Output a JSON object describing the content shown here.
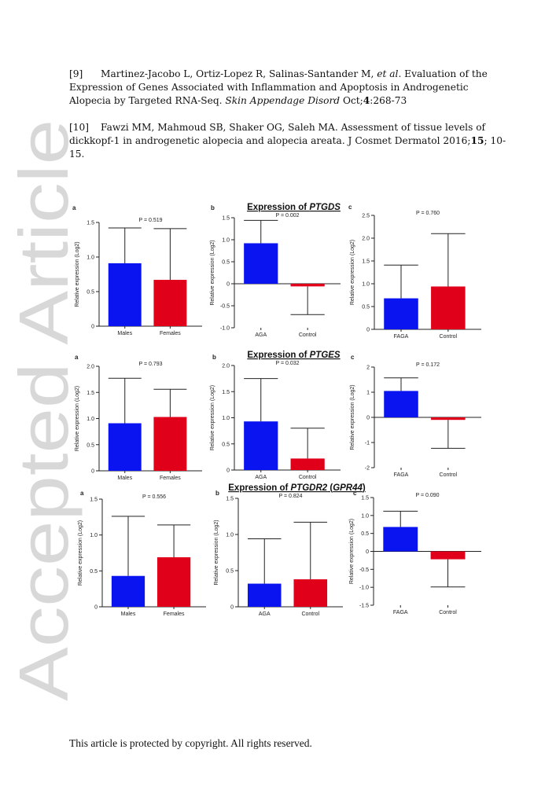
{
  "references": [
    {
      "num": "[9]",
      "authors": "Martinez-Jacobo L, Ortiz-Lopez R, Salinas-Santander M,",
      "etal": "et al",
      "title_part": ". Evaluation of the Expression of Genes Associated with Inflammation and Apoptosis in Androgenetic Alopecia by Targeted RNA-Seq.",
      "journal": "Skin Appendage Disord",
      "tail_pre": "Oct;",
      "volume": "4",
      "tail_post": ":268-73"
    },
    {
      "num": "[10]",
      "authors": "Fawzi MM, Mahmoud SB, Shaker OG, Saleh MA. Assessment of tissue levels of dickkopf-1 in androgenetic alopecia and alopecia areata. J Cosmet Dermatol 2016;",
      "volume": "15",
      "tail_post": "; 10-15."
    }
  ],
  "watermark": "Accepted Article",
  "footer": "This article is protected by copyright. All rights reserved.",
  "colors": {
    "blue": "#0a14f0",
    "red": "#e0001a",
    "axis": "#222222"
  },
  "chart_data": [
    {
      "panel": "a",
      "gene_title": "",
      "type": "bar",
      "ylabel": "Relative expression (Log2)",
      "pvalue": "P = 0.519",
      "categories": [
        "Males",
        "Females"
      ],
      "values": [
        0.91,
        0.67
      ],
      "error_upper": [
        1.42,
        1.41
      ],
      "ylim": [
        0,
        1.5
      ],
      "yticks": [
        0,
        0.5,
        1.0,
        1.5
      ],
      "ytick_labels": [
        "0",
        "0.5",
        "1.0",
        "1.5"
      ]
    },
    {
      "panel": "b",
      "gene_title": "Expression of PTGDS",
      "gene_pre": "Expression of ",
      "gene_name": "PTGDS",
      "gene_post": "",
      "gene_paren": "",
      "gene_close": "",
      "type": "bar",
      "ylabel": "Relative expression (Log2)",
      "pvalue": "P = 0.002",
      "categories": [
        "AGA",
        "Control"
      ],
      "values": [
        0.92,
        -0.06
      ],
      "error_upper": [
        1.44,
        -0.7
      ],
      "ylim": [
        -1.0,
        1.5
      ],
      "yticks": [
        -1.0,
        -0.5,
        0,
        0.5,
        1.0,
        1.5
      ],
      "ytick_labels": [
        "-1.0",
        "-0.5",
        "0",
        "0.5",
        "1.0",
        "1.5"
      ]
    },
    {
      "panel": "c",
      "gene_title": "",
      "type": "bar",
      "ylabel": "Relative expression (Log2)",
      "pvalue": "P = 0.760",
      "categories": [
        "FAGA",
        "Control"
      ],
      "values": [
        0.68,
        0.94
      ],
      "error_upper": [
        1.41,
        2.1
      ],
      "ylim": [
        0,
        2.5
      ],
      "yticks": [
        0,
        0.5,
        1.0,
        1.5,
        2.0,
        2.5
      ],
      "ytick_labels": [
        "0",
        "0.5",
        "1.0",
        "1.5",
        "2.0",
        "2.5"
      ]
    },
    {
      "panel": "a",
      "gene_title": "",
      "type": "bar",
      "ylabel": "Relative expression (Log2)",
      "pvalue": "P = 0.793",
      "categories": [
        "Males",
        "Females"
      ],
      "values": [
        0.91,
        1.03
      ],
      "error_upper": [
        1.77,
        1.56
      ],
      "ylim": [
        0,
        2.0
      ],
      "yticks": [
        0,
        0.5,
        1.0,
        1.5,
        2.0
      ],
      "ytick_labels": [
        "0",
        "0.5",
        "1.0",
        "1.5",
        "2.0"
      ]
    },
    {
      "panel": "b",
      "gene_title": "Expression of PTGES",
      "gene_pre": "Expression of ",
      "gene_name": "PTGES",
      "gene_post": "",
      "gene_paren": "",
      "gene_close": "",
      "type": "bar",
      "ylabel": "Relative expression (Log2)",
      "pvalue": "P = 0.032",
      "categories": [
        "AGA",
        "Control"
      ],
      "values": [
        0.93,
        0.22
      ],
      "error_upper": [
        1.75,
        0.8
      ],
      "ylim": [
        0,
        2.0
      ],
      "yticks": [
        0,
        0.5,
        1.0,
        1.5,
        2.0
      ],
      "ytick_labels": [
        "0",
        "0.5",
        "1.0",
        "1.5",
        "2.0"
      ]
    },
    {
      "panel": "c",
      "gene_title": "",
      "type": "bar",
      "ylabel": "Relative expression (Log2)",
      "pvalue": "P = 0.172",
      "categories": [
        "FAGA",
        "Control"
      ],
      "values": [
        1.05,
        -0.1
      ],
      "error_upper": [
        1.57,
        -1.23
      ],
      "ylim": [
        -2,
        2
      ],
      "yticks": [
        -2,
        -1,
        0,
        1,
        2
      ],
      "ytick_labels": [
        "-2",
        "-1",
        "0",
        "1",
        "2"
      ]
    },
    {
      "panel": "a",
      "gene_title": "",
      "type": "bar",
      "ylabel": "Relative expression (Log2)",
      "pvalue": "P = 0.556",
      "categories": [
        "Males",
        "Females"
      ],
      "values": [
        0.43,
        0.69
      ],
      "error_upper": [
        1.26,
        1.14
      ],
      "ylim": [
        0,
        1.5
      ],
      "yticks": [
        0,
        0.5,
        1.0,
        1.5
      ],
      "ytick_labels": [
        "0",
        "0.5",
        "1.0",
        "1.5"
      ]
    },
    {
      "panel": "b",
      "gene_title": "Expression of PTGDR2 (GPR44)",
      "gene_pre": "Expression of ",
      "gene_name": "PTGDR2",
      "gene_post": " (",
      "gene_paren": "GPR44",
      "gene_close": ")",
      "type": "bar",
      "ylabel": "Relative expression (Log2)",
      "pvalue": "P = 0.824",
      "categories": [
        "AGA",
        "Control"
      ],
      "values": [
        0.32,
        0.38
      ],
      "error_upper": [
        0.94,
        1.17
      ],
      "ylim": [
        0,
        1.5
      ],
      "yticks": [
        0,
        0.5,
        1.0,
        1.5
      ],
      "ytick_labels": [
        "0",
        "0.5",
        "1.0",
        "1.5"
      ]
    },
    {
      "panel": "c",
      "gene_title": "",
      "type": "bar",
      "ylabel": "Relative expression (Log2)",
      "pvalue": "P = 0.090",
      "categories": [
        "FAGA",
        "Control"
      ],
      "values": [
        0.68,
        -0.22
      ],
      "error_upper": [
        1.12,
        -0.99
      ],
      "ylim": [
        -1.5,
        1.5
      ],
      "yticks": [
        -1.5,
        -1.0,
        -0.5,
        0,
        0.5,
        1.0,
        1.5
      ],
      "ytick_labels": [
        "-1.5",
        "-1.0",
        "-0.5",
        "0",
        "0.5",
        "1.0",
        "1.5"
      ]
    }
  ]
}
